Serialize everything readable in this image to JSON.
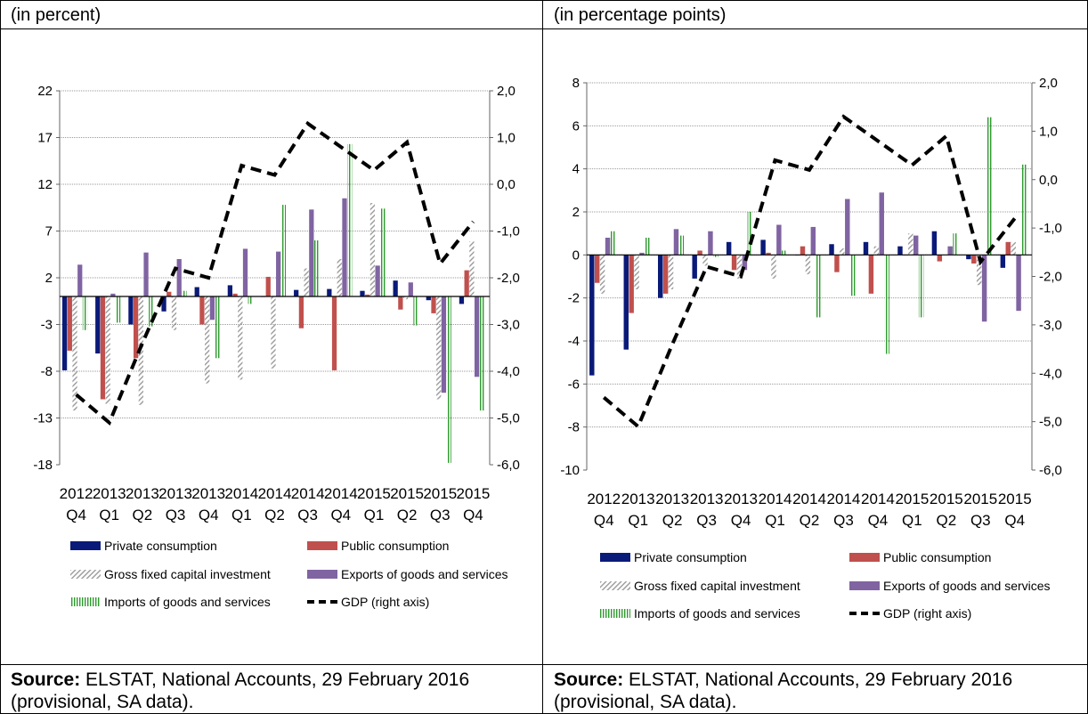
{
  "panels": [
    {
      "unit": "(in percent)",
      "source_label": "Source:",
      "source_text": "ELSTAT, National Accounts, 29 February 2016 (provisional, SA data)."
    },
    {
      "unit": "(in percentage points)",
      "source_label": "Source:",
      "source_text": "ELSTAT, National Accounts, 29 February 2016 (provisional, SA data)."
    }
  ],
  "legend_labels": {
    "private": "Private consumption",
    "public": "Public consumption",
    "gfcf": "Gross fixed capital investment",
    "exports": "Exports of goods and services",
    "imports": "Imports of goods and services",
    "gdp": "GDP (right axis)"
  },
  "series_colors": {
    "private": "#0a1a78",
    "public": "#c0504d",
    "gfcf": "#9a9a9a",
    "exports": "#8064a2",
    "imports": "#2e9a2e",
    "gdp": "#000000"
  },
  "chart_data": [
    {
      "type": "bar",
      "title": "",
      "categories": [
        [
          "2012",
          "Q4"
        ],
        [
          "2013",
          "Q1"
        ],
        [
          "2013",
          "Q2"
        ],
        [
          "2013",
          "Q3"
        ],
        [
          "2013",
          "Q4"
        ],
        [
          "2014",
          "Q1"
        ],
        [
          "2014",
          "Q2"
        ],
        [
          "2014",
          "Q3"
        ],
        [
          "2014",
          "Q4"
        ],
        [
          "2015",
          "Q1"
        ],
        [
          "2015",
          "Q2"
        ],
        [
          "2015",
          "Q3"
        ],
        [
          "2015",
          "Q4"
        ]
      ],
      "ylim": [
        -18,
        22
      ],
      "yticks": [
        "22",
        "17",
        "12",
        "7",
        "2",
        "-3",
        "-8",
        "-13",
        "-18"
      ],
      "y2lim": [
        -6.0,
        2.0
      ],
      "y2ticks": [
        "2,0",
        "1,0",
        "0,0",
        "-1,0",
        "-2,0",
        "-3,0",
        "-4,0",
        "-5,0",
        "-6,0"
      ],
      "series": [
        {
          "key": "private",
          "name": "Private consumption",
          "values": [
            -7.9,
            -6.1,
            -3.0,
            -1.6,
            1.0,
            1.2,
            0.0,
            0.7,
            0.8,
            0.6,
            1.7,
            -0.4,
            -0.8
          ]
        },
        {
          "key": "public",
          "name": "Public consumption",
          "values": [
            -5.8,
            -11.0,
            -6.6,
            0.5,
            -3.0,
            0.3,
            2.1,
            -3.4,
            -7.9,
            0.2,
            -1.4,
            -1.8,
            2.8
          ]
        },
        {
          "key": "gfcf",
          "name": "Gross fixed capital investment",
          "values": [
            -12.2,
            -11.5,
            -11.6,
            -3.6,
            -9.3,
            -8.9,
            -7.7,
            3.0,
            4.0,
            10.0,
            -0.3,
            -11.0,
            5.9
          ]
        },
        {
          "key": "exports",
          "name": "Exports of goods and services",
          "values": [
            3.4,
            0.3,
            4.7,
            4.0,
            -2.5,
            5.1,
            4.8,
            9.3,
            10.5,
            3.3,
            1.5,
            -10.3,
            -8.6
          ]
        },
        {
          "key": "imports",
          "name": "Imports of goods and services",
          "values": [
            -3.6,
            -2.8,
            -3.2,
            0.6,
            -6.6,
            -0.8,
            9.8,
            6.0,
            16.3,
            9.4,
            -3.1,
            -17.8,
            -12.2
          ]
        }
      ],
      "line": {
        "key": "gdp",
        "name": "GDP (right axis)",
        "values": [
          -4.5,
          -5.1,
          -3.4,
          -1.8,
          -2.0,
          0.4,
          0.2,
          1.3,
          0.8,
          0.3,
          0.9,
          -1.7,
          -0.8
        ]
      }
    },
    {
      "type": "bar",
      "title": "",
      "categories": [
        [
          "2012",
          "Q4"
        ],
        [
          "2013",
          "Q1"
        ],
        [
          "2013",
          "Q2"
        ],
        [
          "2013",
          "Q3"
        ],
        [
          "2013",
          "Q4"
        ],
        [
          "2014",
          "Q1"
        ],
        [
          "2014",
          "Q2"
        ],
        [
          "2014",
          "Q3"
        ],
        [
          "2014",
          "Q4"
        ],
        [
          "2015",
          "Q1"
        ],
        [
          "2015",
          "Q2"
        ],
        [
          "2015",
          "Q3"
        ],
        [
          "2015",
          "Q4"
        ]
      ],
      "ylim": [
        -10,
        8
      ],
      "yticks": [
        "8",
        "6",
        "4",
        "2",
        "0",
        "-2",
        "-4",
        "-6",
        "-8",
        "-10"
      ],
      "y2lim": [
        -6.0,
        2.0
      ],
      "y2ticks": [
        "2,0",
        "1,0",
        "0,0",
        "-1,0",
        "-2,0",
        "-3,0",
        "-4,0",
        "-5,0",
        "-6,0"
      ],
      "series": [
        {
          "key": "private",
          "name": "Private consumption",
          "values": [
            -5.6,
            -4.4,
            -2.0,
            -1.1,
            0.6,
            0.7,
            0.0,
            0.5,
            0.6,
            0.4,
            1.1,
            -0.2,
            -0.6
          ]
        },
        {
          "key": "public",
          "name": "Public consumption",
          "values": [
            -1.3,
            -2.7,
            -1.8,
            0.2,
            -0.7,
            0.1,
            0.4,
            -0.8,
            -1.8,
            0.0,
            -0.3,
            -0.4,
            0.6
          ]
        },
        {
          "key": "gfcf",
          "name": "Gross fixed capital investment",
          "values": [
            -1.8,
            -1.6,
            -1.6,
            -0.5,
            -1.1,
            -1.1,
            -0.9,
            0.3,
            0.4,
            1.0,
            0.0,
            -1.4,
            0.6
          ]
        },
        {
          "key": "exports",
          "name": "Exports of goods and services",
          "values": [
            0.8,
            0.1,
            1.2,
            1.1,
            -0.7,
            1.4,
            1.3,
            2.6,
            2.9,
            0.9,
            0.4,
            -3.1,
            -2.6
          ]
        },
        {
          "key": "imports",
          "name": "Imports of goods and services",
          "values": [
            1.1,
            0.8,
            0.9,
            -0.1,
            2.0,
            0.2,
            -2.9,
            -1.9,
            -4.6,
            -2.9,
            1.0,
            6.4,
            4.2
          ]
        }
      ],
      "line": {
        "key": "gdp",
        "name": "GDP (right axis)",
        "values": [
          -4.5,
          -5.1,
          -3.4,
          -1.8,
          -2.0,
          0.4,
          0.2,
          1.3,
          0.8,
          0.3,
          0.9,
          -1.7,
          -0.8
        ]
      }
    }
  ]
}
